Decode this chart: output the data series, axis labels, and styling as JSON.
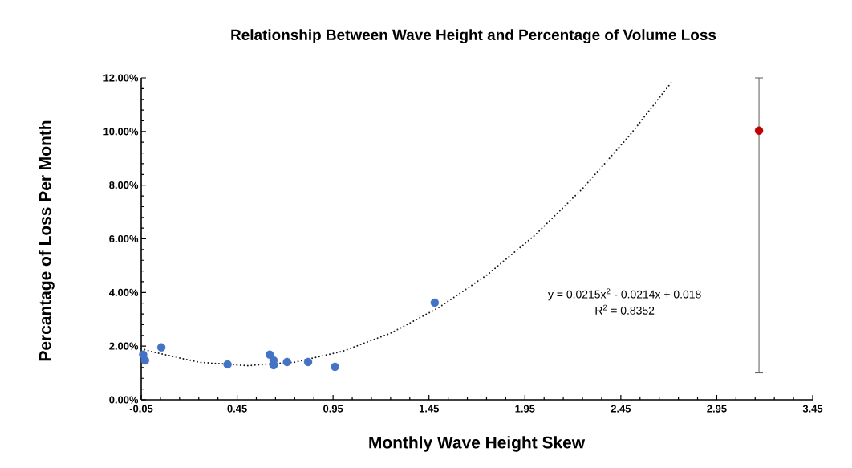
{
  "chart_data": {
    "type": "scatter",
    "title": "Relationship Between Wave Height and Percentage of Volume Loss",
    "xlabel": "Monthly Wave Height Skew",
    "ylabel": "Percantage of Loss Per Month",
    "xlim": [
      -0.05,
      3.45
    ],
    "xticks": [
      -0.05,
      0.45,
      0.95,
      1.45,
      1.95,
      2.45,
      2.95,
      3.45
    ],
    "ylim": [
      0,
      12
    ],
    "yticks": [
      {
        "value": 0,
        "label": "0.00%"
      },
      {
        "value": 2,
        "label": "2.00%"
      },
      {
        "value": 4,
        "label": "4.00%"
      },
      {
        "value": 6,
        "label": "6.00%"
      },
      {
        "value": 8,
        "label": "8.00%"
      },
      {
        "value": 10,
        "label": "10.00%"
      },
      {
        "value": 12,
        "label": "12.00%"
      }
    ],
    "grid": false,
    "series": [
      {
        "color": "#4472c4",
        "marker": "circle",
        "x": [
          -0.04,
          -0.03,
          0.055,
          0.4,
          0.62,
          0.64,
          0.64,
          0.71,
          0.82,
          0.96,
          1.48
        ],
        "values": [
          1.68,
          1.47,
          1.95,
          1.32,
          1.68,
          1.47,
          1.29,
          1.41,
          1.41,
          1.23,
          3.62
        ]
      },
      {
        "color": "#c00000",
        "marker": "circle",
        "x": [
          3.17
        ],
        "values": [
          10.03
        ],
        "errors": [
          [
            1,
            12
          ]
        ]
      },
      {
        "type": "line",
        "color": "#1a1a1a",
        "line_style": "dotted",
        "marker": "none",
        "x": [
          -0.05,
          0,
          0.25,
          0.5,
          0.75,
          1,
          1.25,
          1.5,
          1.75,
          2,
          2.25,
          2.5,
          2.72
        ],
        "values": [
          1.91,
          1.8,
          1.4,
          1.27,
          1.4,
          1.81,
          2.48,
          3.43,
          4.64,
          6.12,
          7.87,
          9.89,
          11.89
        ]
      }
    ],
    "annotations": [
      "y = 0.0215x$^{2}$ - 0.0214x + 0.018",
      "R$^{2}$ = 0.8352"
    ]
  }
}
